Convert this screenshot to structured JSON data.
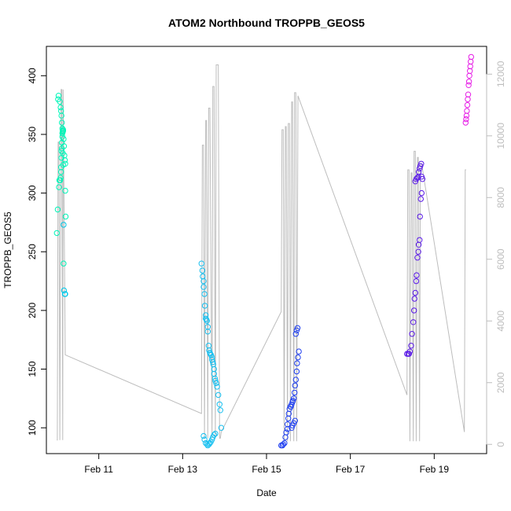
{
  "chart_data": {
    "type": "scatter",
    "title": "ATOM2 Northbound TROPPB_GEOS5",
    "xlabel": "Date",
    "ylabel": "TROPPB_GEOS5",
    "x_unit": "days of February",
    "xlim": [
      9.75,
      20.25
    ],
    "ylim": [
      78,
      425
    ],
    "x_ticks": [
      11,
      13,
      15,
      17,
      19
    ],
    "x_tick_labels": [
      "Feb 11",
      "Feb 13",
      "Feb 15",
      "Feb 17",
      "Feb 19"
    ],
    "y_ticks": [
      100,
      150,
      200,
      250,
      300,
      350,
      400
    ],
    "y_tick_labels": [
      "100",
      "150",
      "200",
      "250",
      "300",
      "350",
      "400"
    ],
    "y2lim": [
      -300,
      12900
    ],
    "y2_ticks": [
      0,
      2000,
      4000,
      6000,
      8000,
      10000,
      12000
    ],
    "y2_tick_labels": [
      "0",
      "2000",
      "4000",
      "6000",
      "8000",
      "10000",
      "12000"
    ],
    "grid": false,
    "legend": "none",
    "colors": {
      "altitude_line": "#bdbdbd",
      "axis": "#000000",
      "right_axis": "#bdbdbd"
    },
    "series": [
      {
        "color": "#00f5b8",
        "x": [
          10.0,
          10.02,
          10.05,
          10.06,
          10.08,
          10.09,
          10.1,
          10.1,
          10.11,
          10.11,
          10.12,
          10.12,
          10.13,
          10.13,
          10.14,
          10.14,
          10.15,
          10.15,
          10.16,
          10.17,
          10.18,
          10.19,
          10.2,
          10.2,
          10.21,
          10.03,
          10.04,
          10.07,
          10.09,
          10.1,
          10.11,
          10.12,
          10.13,
          10.14,
          10.15,
          10.16
        ],
        "y": [
          266,
          286,
          305,
          311,
          311,
          313,
          318,
          322,
          330,
          336,
          338,
          343,
          348,
          351,
          352,
          353,
          353,
          354,
          346,
          340,
          332,
          328,
          325,
          302,
          280,
          380,
          383,
          378,
          373,
          370,
          366,
          360,
          355,
          334,
          324,
          240
        ]
      },
      {
        "color": "#00c8e8",
        "x": [
          10.16,
          10.17,
          10.19,
          10.2
        ],
        "y": [
          273,
          217,
          214,
          214
        ]
      },
      {
        "color": "#18c0f0",
        "x": [
          13.45,
          13.47,
          13.48,
          13.5,
          13.5,
          13.52,
          13.53,
          13.55,
          13.55,
          13.57,
          13.58,
          13.6,
          13.6,
          13.62,
          13.63,
          13.65,
          13.66,
          13.68,
          13.7,
          13.7,
          13.72,
          13.73,
          13.75,
          13.75,
          13.77,
          13.78,
          13.8,
          13.82,
          13.85,
          13.88,
          13.9,
          13.92,
          13.5,
          13.52,
          13.55,
          13.58,
          13.6,
          13.63,
          13.65,
          13.67,
          13.7,
          13.72,
          13.75,
          13.78
        ],
        "y": [
          240,
          234,
          229,
          225,
          220,
          214,
          204,
          196,
          193,
          192,
          191,
          186,
          182,
          170,
          166,
          164,
          163,
          162,
          160,
          158,
          156,
          154,
          150,
          146,
          142,
          140,
          138,
          135,
          128,
          120,
          115,
          100,
          93,
          90,
          87,
          86,
          85,
          86,
          87,
          88,
          90,
          92,
          94,
          95
        ]
      },
      {
        "color": "#1f3ff0",
        "x": [
          15.35,
          15.38,
          15.4,
          15.43,
          15.45,
          15.47,
          15.5,
          15.5,
          15.52,
          15.53,
          15.55,
          15.57,
          15.58,
          15.6,
          15.62,
          15.63,
          15.65,
          15.67,
          15.68,
          15.7,
          15.72,
          15.73,
          15.75,
          15.77,
          15.6,
          15.62,
          15.65,
          15.68,
          15.7,
          15.72,
          15.74
        ],
        "y": [
          85,
          85,
          86,
          87,
          92,
          96,
          99,
          103,
          108,
          112,
          116,
          118,
          118,
          120,
          122,
          123,
          125,
          130,
          136,
          141,
          148,
          155,
          160,
          165,
          100,
          102,
          104,
          106,
          180,
          183,
          185
        ]
      },
      {
        "color": "#5b1ae8",
        "x": [
          18.35,
          18.38,
          18.4,
          18.42,
          18.45,
          18.47,
          18.5,
          18.52,
          18.53,
          18.55,
          18.57,
          18.58,
          18.6,
          18.62,
          18.63,
          18.65,
          18.66,
          18.68,
          18.7,
          18.55,
          18.57,
          18.6,
          18.62,
          18.63,
          18.65,
          18.67,
          18.69,
          18.7,
          18.72
        ],
        "y": [
          163,
          163,
          163,
          165,
          170,
          180,
          190,
          200,
          210,
          215,
          225,
          230,
          245,
          250,
          256,
          260,
          280,
          295,
          300,
          310,
          312,
          313,
          314,
          318,
          321,
          323,
          325,
          314,
          312
        ]
      },
      {
        "color": "#e61ee6",
        "x": [
          19.75,
          19.76,
          19.77,
          19.78,
          19.79,
          19.8,
          19.81,
          19.82,
          19.83,
          19.84,
          19.85,
          19.86,
          19.87,
          19.88
        ],
        "y": [
          360,
          363,
          366,
          370,
          375,
          380,
          384,
          392,
          395,
          400,
          404,
          408,
          412,
          416
        ]
      }
    ],
    "altitude_line": {
      "color": "#bdbdbd",
      "x": [
        10.0,
        10.01,
        10.03,
        10.05,
        10.07,
        10.1,
        10.12,
        10.14,
        10.15,
        10.2,
        13.45,
        13.47,
        13.5,
        13.52,
        13.55,
        13.57,
        13.6,
        13.62,
        13.65,
        13.7,
        13.72,
        13.75,
        13.78,
        13.8,
        13.85,
        13.88,
        13.9,
        13.92,
        15.35,
        15.37,
        15.4,
        15.42,
        15.45,
        15.47,
        15.5,
        15.52,
        15.55,
        15.57,
        15.6,
        15.62,
        15.65,
        15.67,
        15.7,
        15.72,
        15.75,
        18.35,
        18.37,
        18.4,
        18.42,
        18.45,
        18.47,
        18.5,
        18.52,
        18.55,
        18.57,
        18.6,
        18.62,
        18.65,
        18.67,
        18.7,
        19.72,
        19.74,
        19.76
      ],
      "y": [
        140,
        140,
        9800,
        9800,
        140,
        11500,
        11500,
        140,
        11500,
        2900,
        1000,
        9700,
        9700,
        200,
        10500,
        10500,
        200,
        10900,
        10900,
        200,
        11600,
        11600,
        200,
        12300,
        12300,
        200,
        200,
        400,
        4300,
        10200,
        10200,
        100,
        10300,
        10300,
        100,
        10400,
        10400,
        100,
        11100,
        11100,
        100,
        11400,
        11400,
        100,
        11300,
        1600,
        8900,
        8900,
        100,
        8800,
        8800,
        100,
        9500,
        9500,
        100,
        9300,
        9300,
        100,
        9100,
        9100,
        400,
        8900,
        8900
      ]
    }
  }
}
